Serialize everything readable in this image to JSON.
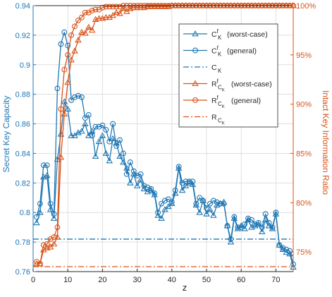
{
  "chart_data": {
    "type": "line",
    "xlabel": "z",
    "ylabel_left": "Secret Key Capacity",
    "ylabel_right": "Intact Key Information Ratio",
    "xlim": [
      0,
      75
    ],
    "ylim_left": [
      0.76,
      0.94
    ],
    "ylim_right": [
      73,
      100
    ],
    "x_ticks": [
      0,
      10,
      20,
      30,
      40,
      50,
      60,
      70
    ],
    "y_left_ticks": [
      0.76,
      0.78,
      0.8,
      0.82,
      0.84,
      0.86,
      0.88,
      0.9,
      0.92,
      0.94
    ],
    "y_right_ticks": [
      75,
      80,
      85,
      90,
      95,
      100
    ],
    "y_right_tick_labels": [
      "75%",
      "80%",
      "85%",
      "90%",
      "95%",
      "100%"
    ],
    "grid": true,
    "legend_position": "top-right",
    "colors": {
      "blue": "#1f77b4",
      "orange": "#d95319"
    },
    "legend": [
      {
        "base": "C",
        "sup": "f",
        "sub": "K",
        "subsub": "",
        "suffix": "(worst-case)",
        "marker": "triangle",
        "color": "#1f77b4",
        "dash": ""
      },
      {
        "base": "C",
        "sup": "f",
        "sub": "K",
        "subsub": "",
        "suffix": "(general)",
        "marker": "circle",
        "color": "#1f77b4",
        "dash": ""
      },
      {
        "base": "C",
        "sup": "",
        "sub": "K",
        "subsub": "",
        "suffix": "",
        "marker": "none",
        "color": "#1f77b4",
        "dash": "8,3,2,3"
      },
      {
        "base": "R",
        "sup": "f",
        "sub": "C",
        "subsub": "K",
        "suffix": "(worst-case)",
        "marker": "triangle",
        "color": "#d95319",
        "dash": ""
      },
      {
        "base": "R",
        "sup": "f",
        "sub": "C",
        "subsub": "K",
        "suffix": "(general)",
        "marker": "circle",
        "color": "#d95319",
        "dash": ""
      },
      {
        "base": "R",
        "sup": "",
        "sub": "C",
        "subsub": "K",
        "suffix": "",
        "marker": "none",
        "color": "#d95319",
        "dash": "8,3,2,3"
      }
    ],
    "series": [
      {
        "axis": "left",
        "marker": "triangle",
        "color": "#1f77b4",
        "dash": "",
        "x": [
          1,
          2,
          3,
          4,
          5,
          6,
          7,
          8,
          9,
          10,
          11,
          12,
          13,
          14,
          15,
          16,
          17,
          18,
          19,
          20,
          21,
          22,
          23,
          24,
          25,
          26,
          27,
          28,
          29,
          30,
          31,
          32,
          33,
          34,
          35,
          36,
          37,
          38,
          39,
          40,
          41,
          42,
          43,
          44,
          45,
          46,
          47,
          48,
          49,
          50,
          51,
          52,
          53,
          54,
          55,
          56,
          57,
          58,
          59,
          60,
          61,
          62,
          63,
          64,
          65,
          66,
          67,
          68,
          69,
          70,
          71,
          72,
          73,
          74,
          75
        ],
        "values": [
          0.793,
          0.8,
          0.824,
          0.825,
          0.802,
          0.796,
          0.836,
          0.853,
          0.875,
          0.87,
          0.852,
          0.852,
          0.854,
          0.855,
          0.86,
          0.852,
          0.855,
          0.838,
          0.848,
          0.852,
          0.84,
          0.835,
          0.85,
          0.847,
          0.838,
          0.834,
          0.83,
          0.82,
          0.826,
          0.818,
          0.822,
          0.816,
          0.814,
          0.815,
          0.812,
          0.798,
          0.796,
          0.802,
          0.804,
          0.806,
          0.813,
          0.83,
          0.815,
          0.818,
          0.82,
          0.819,
          0.805,
          0.8,
          0.808,
          0.799,
          0.802,
          0.798,
          0.805,
          0.806,
          0.807,
          0.791,
          0.78,
          0.796,
          0.789,
          0.791,
          0.789,
          0.795,
          0.79,
          0.791,
          0.792,
          0.787,
          0.795,
          0.791,
          0.789,
          0.799,
          0.778,
          0.775,
          0.773,
          0.772,
          0.763
        ]
      },
      {
        "axis": "left",
        "marker": "circle",
        "color": "#1f77b4",
        "dash": "",
        "x": [
          1,
          2,
          3,
          4,
          5,
          6,
          7,
          8,
          9,
          10,
          11,
          12,
          13,
          14,
          15,
          16,
          17,
          18,
          19,
          20,
          21,
          22,
          23,
          24,
          25,
          26,
          27,
          28,
          29,
          30,
          31,
          32,
          33,
          34,
          35,
          36,
          37,
          38,
          39,
          40,
          41,
          42,
          43,
          44,
          45,
          46,
          47,
          48,
          49,
          50,
          51,
          52,
          53,
          54,
          55,
          56,
          57,
          58,
          59,
          60,
          61,
          62,
          63,
          64,
          65,
          66,
          67,
          68,
          69,
          70,
          71,
          72,
          73,
          74,
          75
        ],
        "values": [
          0.797,
          0.806,
          0.832,
          0.832,
          0.806,
          0.799,
          0.884,
          0.914,
          0.922,
          0.913,
          0.876,
          0.878,
          0.879,
          0.878,
          0.864,
          0.866,
          0.852,
          0.858,
          0.858,
          0.859,
          0.856,
          0.848,
          0.86,
          0.845,
          0.849,
          0.84,
          0.826,
          0.834,
          0.828,
          0.825,
          0.826,
          0.818,
          0.817,
          0.816,
          0.813,
          0.8,
          0.806,
          0.808,
          0.809,
          0.807,
          0.815,
          0.831,
          0.82,
          0.821,
          0.821,
          0.821,
          0.806,
          0.81,
          0.808,
          0.803,
          0.806,
          0.808,
          0.807,
          0.806,
          0.806,
          0.791,
          0.782,
          0.797,
          0.79,
          0.79,
          0.792,
          0.796,
          0.795,
          0.792,
          0.793,
          0.79,
          0.799,
          0.793,
          0.79,
          0.8,
          0.778,
          0.776,
          0.775,
          0.774,
          0.765
        ]
      },
      {
        "axis": "left",
        "marker": "none",
        "color": "#1f77b4",
        "dash": "8,3,2,3",
        "x": [
          0,
          75
        ],
        "values": [
          0.782,
          0.782
        ]
      },
      {
        "axis": "right",
        "marker": "triangle",
        "color": "#d95319",
        "dash": "",
        "x": [
          1,
          2,
          3,
          4,
          5,
          6,
          7,
          8,
          9,
          10,
          11,
          12,
          13,
          14,
          15,
          16,
          17,
          18,
          19,
          20,
          21,
          22,
          23,
          24,
          25,
          26,
          27,
          28,
          29,
          30,
          31,
          32,
          33,
          34,
          35,
          36,
          37,
          38,
          39,
          40,
          41,
          42,
          43,
          44,
          45,
          46,
          47,
          48,
          49,
          50,
          51,
          52,
          53,
          54,
          55,
          56,
          57,
          58,
          59,
          60,
          61,
          62,
          63,
          64,
          65,
          66,
          67,
          68,
          69,
          70,
          71,
          72,
          73,
          74,
          75
        ],
        "values": [
          73.8,
          73.8,
          75.2,
          75.4,
          75.5,
          75.8,
          76.5,
          84.6,
          89.0,
          92.2,
          94.5,
          95.4,
          96.5,
          97.3,
          97.2,
          97.8,
          97.5,
          98.6,
          98.7,
          98.7,
          98.8,
          98.8,
          99.0,
          99.3,
          99.2,
          99.7,
          99.4,
          99.7,
          99.8,
          99.8,
          99.8,
          99.8,
          99.9,
          99.9,
          99.9,
          99.9,
          99.9,
          99.9,
          99.9,
          100,
          100,
          100,
          100,
          100,
          100,
          100,
          100,
          100,
          100,
          100,
          100,
          100,
          100,
          100,
          100,
          100,
          100,
          100,
          100,
          100,
          100,
          100,
          100,
          100,
          100,
          100,
          100,
          100,
          100,
          100,
          100,
          100,
          100,
          100,
          100
        ]
      },
      {
        "axis": "right",
        "marker": "circle",
        "color": "#d95319",
        "dash": "",
        "x": [
          1,
          2,
          3,
          4,
          5,
          6,
          7,
          8,
          9,
          10,
          11,
          12,
          13,
          14,
          15,
          16,
          17,
          18,
          19,
          20,
          21,
          22,
          23,
          24,
          25,
          26,
          27,
          28,
          29,
          30,
          31,
          32,
          33,
          34,
          35,
          36,
          37,
          38,
          39,
          40,
          41,
          42,
          43,
          44,
          45,
          46,
          47,
          48,
          49,
          50,
          51,
          52,
          53,
          54,
          55,
          56,
          57,
          58,
          59,
          60,
          61,
          62,
          63,
          64,
          65,
          66,
          67,
          68,
          69,
          70,
          71,
          72,
          73,
          74,
          75
        ],
        "values": [
          74.0,
          73.8,
          75.7,
          75.8,
          76.3,
          76.5,
          77.5,
          89.5,
          93.5,
          95.0,
          97.0,
          97.9,
          98.5,
          98.8,
          99.3,
          99.3,
          99.5,
          99.6,
          99.6,
          99.8,
          99.9,
          99.9,
          99.9,
          99.9,
          99.9,
          100,
          100,
          100,
          100,
          100,
          100,
          100,
          100,
          100,
          100,
          100,
          100,
          100,
          100,
          100,
          100,
          100,
          100,
          100,
          100,
          100,
          100,
          100,
          100,
          100,
          100,
          100,
          100,
          100,
          100,
          100,
          100,
          100,
          100,
          100,
          100,
          100,
          100,
          100,
          100,
          100,
          100,
          100,
          100,
          100,
          100,
          100,
          100,
          100,
          100
        ]
      },
      {
        "axis": "right",
        "marker": "none",
        "color": "#d95319",
        "dash": "8,3,2,3",
        "x": [
          0,
          75
        ],
        "values": [
          73.5,
          73.5
        ]
      }
    ]
  }
}
